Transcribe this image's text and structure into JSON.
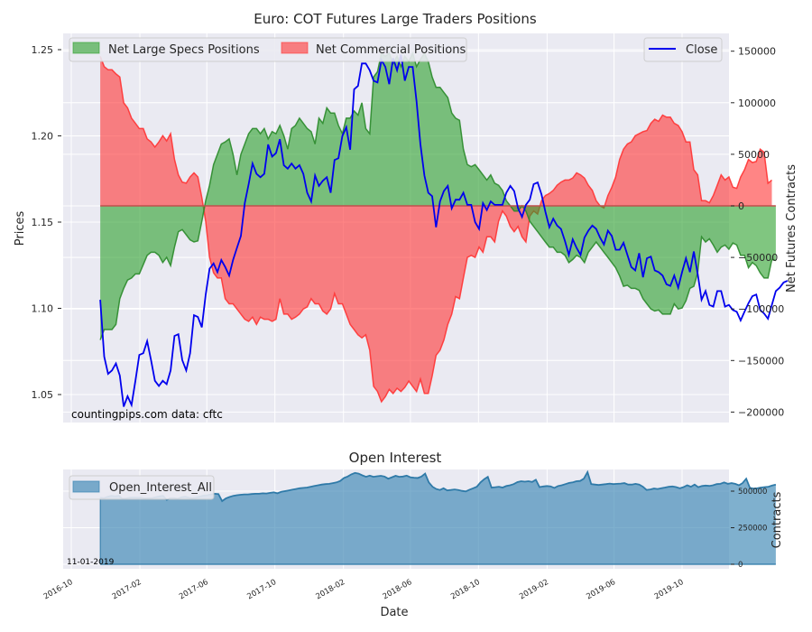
{
  "chart_data": [
    {
      "type": "area",
      "title": "Euro: COT Futures Large Traders Positions",
      "xlabel": "",
      "ylabel_left": "Prices",
      "ylabel_right": "Net Futures Contracts",
      "ylim_left": [
        1.035,
        1.26
      ],
      "ylim_right": [
        -210000,
        165000
      ],
      "yticks_left": [
        "1.05",
        "1.10",
        "1.15",
        "1.20",
        "1.25"
      ],
      "yticks_left_values": [
        1.05,
        1.1,
        1.15,
        1.2,
        1.25
      ],
      "yticks_right": [
        "−200000",
        "−150000",
        "−100000",
        "−50000",
        "0",
        "50000",
        "100000",
        "150000"
      ],
      "yticks_right_values": [
        -200000,
        -150000,
        -100000,
        -50000,
        0,
        50000,
        100000,
        150000
      ],
      "grid": true,
      "x_start": "2016-11-22",
      "x_end": "2019-10-29",
      "x_frequency": "weekly",
      "legend": [
        {
          "label": "Net Large Specs Positions",
          "color": "#2ca02c",
          "placement": "top-left"
        },
        {
          "label": "Net Commercial Positions",
          "color": "#ff3333",
          "placement": "top-left"
        },
        {
          "label": "Close",
          "color": "#0000ee",
          "placement": "top-right"
        }
      ],
      "annotations": [
        "countingpips.com",
        "data: cftc"
      ],
      "series": [
        {
          "name": "Net Large Specs Positions",
          "axis": "right",
          "color": "#2ca02c",
          "values": [
            -130000,
            -120000,
            -120000,
            -120000,
            -115000,
            -90000,
            -80000,
            -72000,
            -70000,
            -66000,
            -66000,
            -57000,
            -48000,
            -45000,
            -45000,
            -48000,
            -55000,
            -50000,
            -58000,
            -40000,
            -25000,
            -23000,
            -28000,
            -33000,
            -35000,
            -34000,
            -15000,
            5000,
            20000,
            40000,
            50000,
            60000,
            62000,
            65000,
            50000,
            30000,
            50000,
            60000,
            70000,
            75000,
            75000,
            70000,
            75000,
            65000,
            72000,
            70000,
            78000,
            68000,
            55000,
            75000,
            78000,
            85000,
            80000,
            75000,
            72000,
            60000,
            85000,
            80000,
            95000,
            90000,
            90000,
            78000,
            70000,
            85000,
            85000,
            92000,
            88000,
            100000,
            75000,
            70000,
            125000,
            130000,
            148000,
            145000,
            148000,
            138000,
            145000,
            135000,
            145000,
            140000,
            148000,
            135000,
            142000,
            148000,
            140000,
            125000,
            115000,
            115000,
            110000,
            105000,
            90000,
            85000,
            83000,
            55000,
            40000,
            38000,
            40000,
            35000,
            30000,
            25000,
            30000,
            22000,
            20000,
            15000,
            5000,
            0,
            -5000,
            -5000,
            0,
            -5000,
            -15000,
            -20000,
            -25000,
            -30000,
            -35000,
            -40000,
            -40000,
            -45000,
            -45000,
            -48000,
            -55000,
            -52000,
            -48000,
            -50000,
            -55000,
            -45000,
            -40000,
            -35000,
            -40000,
            -45000,
            -50000,
            -55000,
            -60000,
            -68000,
            -78000,
            -77000,
            -80000,
            -80000,
            -82000,
            -90000,
            -95000,
            -100000,
            -102000,
            -101000,
            -105000,
            -105000,
            -105000,
            -95000,
            -100000,
            -99000,
            -92000,
            -80000,
            -78000,
            -65000,
            -30000,
            -35000,
            -32000,
            -38000,
            -45000,
            -40000,
            -38000,
            -42000,
            -36000,
            -38000,
            -48000,
            -48000,
            -60000,
            -55000,
            -58000,
            -65000,
            -70000,
            -70000,
            -52000,
            -53000
          ]
        },
        {
          "name": "Net Commercial Positions",
          "axis": "right",
          "color": "#ff3333",
          "values": [
            145000,
            135000,
            132000,
            132000,
            128000,
            125000,
            100000,
            95000,
            85000,
            80000,
            75000,
            75000,
            65000,
            62000,
            57000,
            62000,
            68000,
            63000,
            70000,
            45000,
            30000,
            23000,
            22000,
            28000,
            32000,
            28000,
            8000,
            -15000,
            -50000,
            -65000,
            -70000,
            -70000,
            -90000,
            -95000,
            -95000,
            -100000,
            -105000,
            -110000,
            -112000,
            -108000,
            -115000,
            -108000,
            -110000,
            -110000,
            -112000,
            -110000,
            -90000,
            -105000,
            -105000,
            -110000,
            -108000,
            -105000,
            -100000,
            -98000,
            -90000,
            -95000,
            -95000,
            -102000,
            -105000,
            -100000,
            -85000,
            -95000,
            -95000,
            -105000,
            -115000,
            -120000,
            -125000,
            -128000,
            -125000,
            -140000,
            -175000,
            -180000,
            -190000,
            -185000,
            -178000,
            -182000,
            -177000,
            -180000,
            -176000,
            -170000,
            -175000,
            -180000,
            -168000,
            -182000,
            -182000,
            -165000,
            -145000,
            -140000,
            -130000,
            -115000,
            -105000,
            -88000,
            -90000,
            -70000,
            -50000,
            -48000,
            -50000,
            -40000,
            -45000,
            -30000,
            -30000,
            -35000,
            -15000,
            -5000,
            -10000,
            -20000,
            -25000,
            -20000,
            -30000,
            -35000,
            -10000,
            -5000,
            -8000,
            5000,
            10000,
            12000,
            15000,
            20000,
            23000,
            25000,
            25000,
            27000,
            32000,
            30000,
            27000,
            20000,
            15000,
            5000,
            0,
            -2000,
            10000,
            18000,
            28000,
            45000,
            55000,
            60000,
            62000,
            68000,
            70000,
            72000,
            73000,
            80000,
            84000,
            82000,
            88000,
            86000,
            86000,
            80000,
            78000,
            72000,
            62000,
            62000,
            35000,
            30000,
            5000,
            5000,
            3000,
            10000,
            20000,
            30000,
            25000,
            28000,
            18000,
            17000,
            28000,
            35000,
            45000,
            42000,
            43000,
            55000,
            52000,
            22000,
            25000
          ]
        },
        {
          "name": "Close",
          "axis": "left",
          "color": "#0000ee",
          "values": [
            1.105,
            1.072,
            1.062,
            1.064,
            1.068,
            1.061,
            1.043,
            1.049,
            1.044,
            1.058,
            1.073,
            1.074,
            1.081,
            1.07,
            1.058,
            1.055,
            1.058,
            1.056,
            1.064,
            1.084,
            1.085,
            1.07,
            1.064,
            1.074,
            1.096,
            1.095,
            1.089,
            1.108,
            1.123,
            1.126,
            1.121,
            1.128,
            1.124,
            1.119,
            1.128,
            1.135,
            1.142,
            1.161,
            1.172,
            1.184,
            1.178,
            1.176,
            1.178,
            1.195,
            1.188,
            1.19,
            1.198,
            1.183,
            1.181,
            1.184,
            1.181,
            1.183,
            1.178,
            1.167,
            1.162,
            1.177,
            1.171,
            1.174,
            1.176,
            1.167,
            1.186,
            1.187,
            1.2,
            1.205,
            1.192,
            1.227,
            1.229,
            1.242,
            1.242,
            1.238,
            1.232,
            1.231,
            1.244,
            1.24,
            1.23,
            1.245,
            1.238,
            1.247,
            1.232,
            1.24,
            1.24,
            1.22,
            1.195,
            1.177,
            1.167,
            1.165,
            1.147,
            1.162,
            1.168,
            1.171,
            1.158,
            1.163,
            1.163,
            1.167,
            1.16,
            1.16,
            1.15,
            1.146,
            1.161,
            1.157,
            1.162,
            1.16,
            1.16,
            1.16,
            1.167,
            1.171,
            1.168,
            1.158,
            1.153,
            1.16,
            1.163,
            1.172,
            1.173,
            1.166,
            1.156,
            1.147,
            1.152,
            1.148,
            1.146,
            1.139,
            1.131,
            1.14,
            1.135,
            1.131,
            1.141,
            1.145,
            1.148,
            1.146,
            1.141,
            1.137,
            1.145,
            1.142,
            1.134,
            1.134,
            1.138,
            1.131,
            1.124,
            1.122,
            1.132,
            1.118,
            1.129,
            1.13,
            1.122,
            1.121,
            1.119,
            1.114,
            1.113,
            1.119,
            1.112,
            1.121,
            1.129,
            1.121,
            1.133,
            1.12,
            1.105,
            1.11,
            1.102,
            1.101,
            1.11,
            1.11,
            1.101,
            1.102,
            1.099,
            1.098,
            1.093,
            1.098,
            1.103,
            1.107,
            1.108,
            1.099,
            1.097,
            1.094,
            1.102,
            1.11,
            1.112,
            1.115,
            1.116
          ]
        }
      ]
    },
    {
      "type": "area",
      "title": "Open Interest",
      "xlabel": "Date",
      "ylabel": "Contracts",
      "ylim": [
        0,
        630000
      ],
      "yticks": [
        "0",
        "250000",
        "500000"
      ],
      "yticks_values": [
        0,
        250000,
        500000
      ],
      "xticks": [
        "2016-10",
        "2017-02",
        "2017-06",
        "2017-10",
        "2018-02",
        "2018-06",
        "2018-10",
        "2019-02",
        "2019-06",
        "2019-10"
      ],
      "grid": true,
      "legend": [
        {
          "label": "Open_Interest_All",
          "color": "#4682b4",
          "placement": "top-left"
        }
      ],
      "annotations": [
        "11-01-2019"
      ],
      "series": [
        {
          "name": "Open_Interest_All",
          "color": "#3a86b4",
          "values": [
            455000,
            452000,
            462000,
            468000,
            465000,
            468000,
            448000,
            450000,
            455000,
            456000,
            455000,
            455000,
            450000,
            452000,
            452000,
            458000,
            465000,
            468000,
            440000,
            452000,
            452000,
            448000,
            458000,
            462000,
            455000,
            452000,
            456000,
            463000,
            470000,
            472000,
            478000,
            482000,
            480000,
            432000,
            450000,
            460000,
            468000,
            472000,
            475000,
            478000,
            478000,
            480000,
            482000,
            482000,
            485000,
            484000,
            488000,
            492000,
            485000,
            495000,
            500000,
            505000,
            510000,
            515000,
            520000,
            522000,
            525000,
            530000,
            535000,
            540000,
            545000,
            548000,
            550000,
            555000,
            560000,
            570000,
            590000,
            600000,
            615000,
            625000,
            620000,
            608000,
            598000,
            606000,
            598000,
            602000,
            605000,
            600000,
            585000,
            595000,
            605000,
            598000,
            600000,
            606000,
            595000,
            592000,
            590000,
            600000,
            620000,
            560000,
            530000,
            515000,
            508000,
            520000,
            505000,
            508000,
            512000,
            508000,
            502000,
            498000,
            510000,
            520000,
            530000,
            560000,
            582000,
            598000,
            525000,
            527000,
            530000,
            525000,
            535000,
            540000,
            548000,
            562000,
            568000,
            565000,
            568000,
            563000,
            578000,
            528000,
            532000,
            535000,
            533000,
            522000,
            535000,
            540000,
            548000,
            556000,
            560000,
            568000,
            570000,
            585000,
            630000,
            548000,
            545000,
            542000,
            545000,
            548000,
            552000,
            548000,
            550000,
            552000,
            555000,
            545000,
            545000,
            550000,
            545000,
            530000,
            508000,
            512000,
            518000,
            515000,
            520000,
            525000,
            530000,
            532000,
            528000,
            520000,
            528000,
            540000,
            530000,
            545000,
            527000,
            535000,
            538000,
            536000,
            540000,
            548000,
            550000,
            560000,
            550000,
            555000,
            550000,
            540000,
            555000,
            585000,
            522000,
            518000,
            520000,
            525000,
            528000,
            530000,
            538000,
            545000
          ]
        }
      ]
    }
  ]
}
